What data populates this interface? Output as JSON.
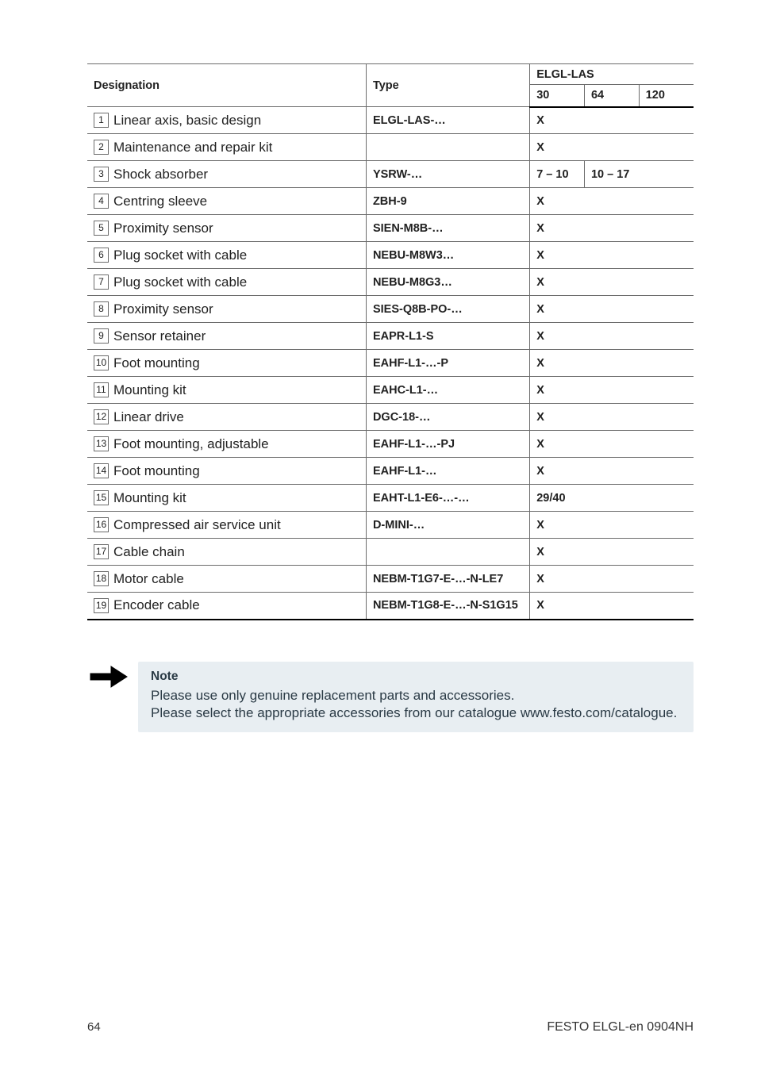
{
  "table": {
    "headers": {
      "designation": "Designation",
      "type": "Type",
      "group": "ELGL-LAS",
      "c30": "30",
      "c64": "64",
      "c120": "120"
    },
    "rows": [
      {
        "n": "1",
        "desig": "Linear axis, basic design",
        "type": "ELGL-LAS-…",
        "v": [
          "X",
          "",
          ""
        ],
        "span": 3
      },
      {
        "n": "2",
        "desig": "Maintenance and repair kit",
        "type": "",
        "v": [
          "X",
          "",
          ""
        ],
        "span": 3
      },
      {
        "n": "3",
        "desig": "Shock absorber",
        "type": "YSRW-…",
        "v": [
          "7 – 10",
          "10 – 17",
          ""
        ],
        "span": 0
      },
      {
        "n": "4",
        "desig": "Centring sleeve",
        "type": "ZBH-9",
        "v": [
          "X",
          "",
          ""
        ],
        "span": 3
      },
      {
        "n": "5",
        "desig": "Proximity sensor",
        "type": "SIEN-M8B-…",
        "v": [
          "X",
          "",
          ""
        ],
        "span": 3
      },
      {
        "n": "6",
        "desig": "Plug socket with cable",
        "type": "NEBU-M8W3…",
        "v": [
          "X",
          "",
          ""
        ],
        "span": 3
      },
      {
        "n": "7",
        "desig": "Plug socket with cable",
        "type": "NEBU-M8G3…",
        "v": [
          "X",
          "",
          ""
        ],
        "span": 3
      },
      {
        "n": "8",
        "desig": "Proximity sensor",
        "type": "SIES-Q8B-PO-…",
        "v": [
          "X",
          "",
          ""
        ],
        "span": 3
      },
      {
        "n": "9",
        "desig": "Sensor retainer",
        "type": "EAPR-L1-S",
        "v": [
          "X",
          "",
          ""
        ],
        "span": 3
      },
      {
        "n": "10",
        "desig": "Foot mounting",
        "type": "EAHF-L1-…-P",
        "v": [
          "X",
          "",
          ""
        ],
        "span": 3
      },
      {
        "n": "11",
        "desig": "Mounting kit",
        "type": "EAHC-L1-…",
        "v": [
          "X",
          "",
          ""
        ],
        "span": 3
      },
      {
        "n": "12",
        "desig": "Linear drive",
        "type": "DGC-18-…",
        "v": [
          "X",
          "",
          ""
        ],
        "span": 3
      },
      {
        "n": "13",
        "desig": "Foot mounting, adjustable",
        "type": "EAHF-L1-…-PJ",
        "v": [
          "X",
          "",
          ""
        ],
        "span": 3
      },
      {
        "n": "14",
        "desig": "Foot mounting",
        "type": "EAHF-L1-…",
        "v": [
          "X",
          "",
          ""
        ],
        "span": 3
      },
      {
        "n": "15",
        "desig": "Mounting kit",
        "type": "EAHT-L1-E6-…-…",
        "v": [
          "29/40",
          "",
          ""
        ],
        "span": 3
      },
      {
        "n": "16",
        "desig": "Compressed air service unit",
        "type": "D-MINI-…",
        "v": [
          "X",
          "",
          ""
        ],
        "span": 3
      },
      {
        "n": "17",
        "desig": "Cable chain",
        "type": "",
        "v": [
          "X",
          "",
          ""
        ],
        "span": 3
      },
      {
        "n": "18",
        "desig": "Motor cable",
        "type": "NEBM-T1G7-E-…-N-LE7",
        "v": [
          "X",
          "",
          ""
        ],
        "span": 3
      },
      {
        "n": "19",
        "desig": "Encoder cable",
        "type": "NEBM-T1G8-E-…-N-S1G15",
        "v": [
          "X",
          "",
          ""
        ],
        "span": 3
      }
    ]
  },
  "note": {
    "title": "Note",
    "p1": "Please use only genuine replacement parts and accessories.",
    "p2": "Please select the appropriate accessories from our catalogue www.festo.com/catalogue."
  },
  "footer": {
    "page": "64",
    "doc": "FESTO ELGL-en 0904NH"
  }
}
